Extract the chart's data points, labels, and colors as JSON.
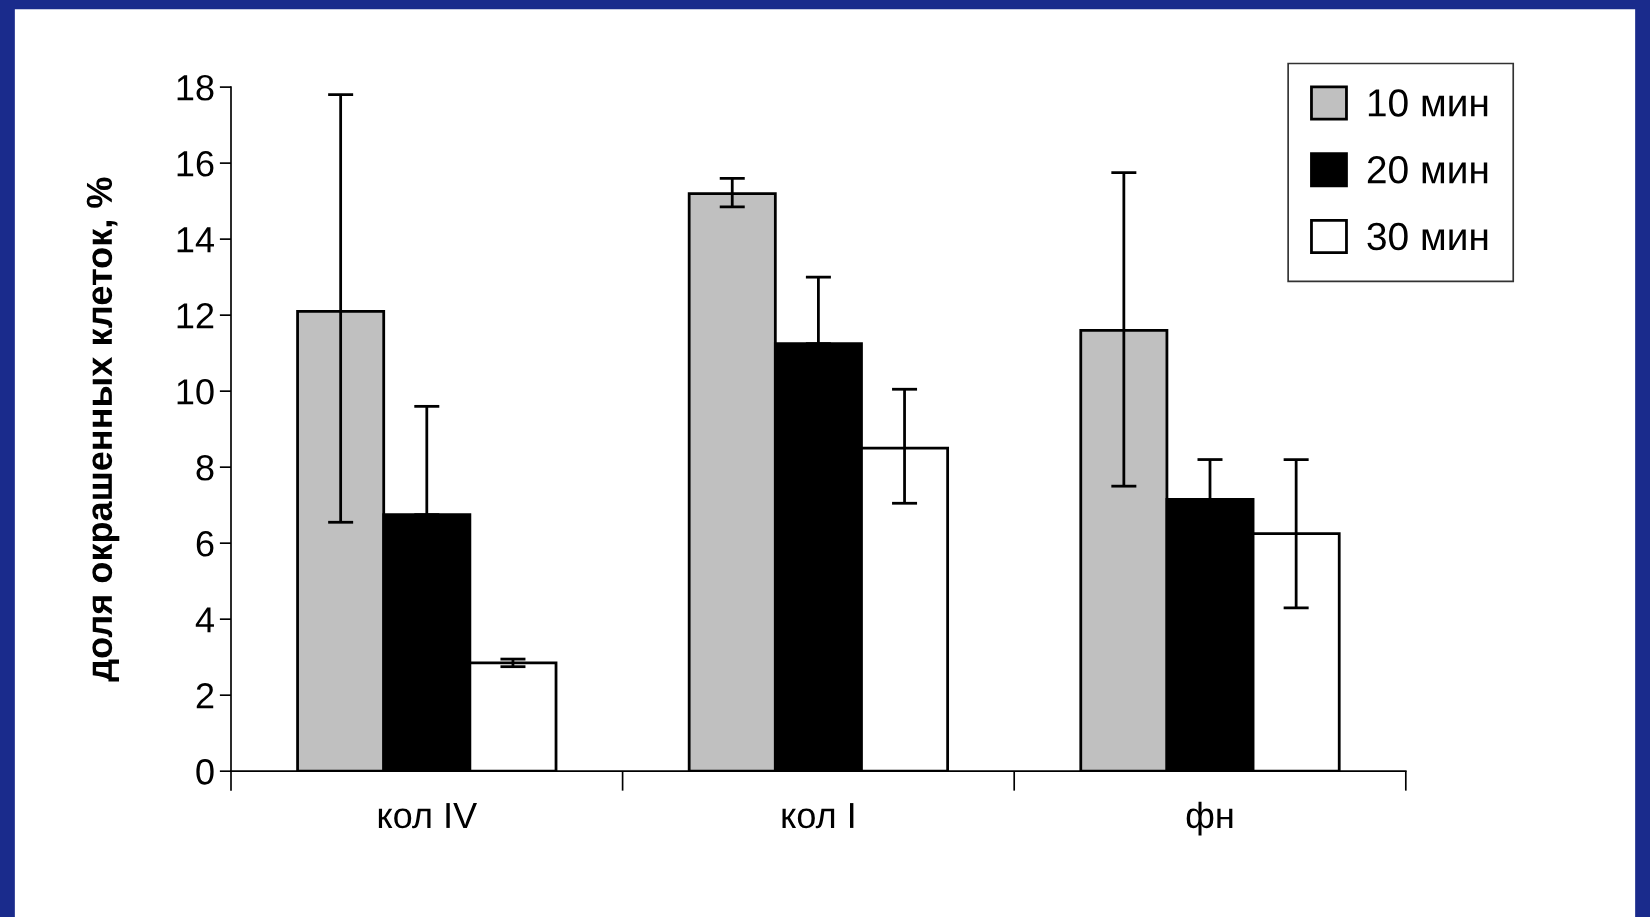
{
  "chart_data": {
    "type": "bar",
    "ylabel": "доля окрашенных клеток, %",
    "categories": [
      "кол IV",
      "кол I",
      "фн"
    ],
    "series": [
      {
        "name": "10 мин",
        "color": "#c0c0c0",
        "values": [
          12.1,
          15.2,
          11.6
        ],
        "errors": [
          [
            6.55,
            17.8
          ],
          [
            14.85,
            15.6
          ],
          [
            7.5,
            15.75
          ]
        ]
      },
      {
        "name": "20 мин",
        "color": "#000000",
        "values": [
          6.75,
          11.25,
          7.15
        ],
        "errors": [
          [
            6.75,
            9.6
          ],
          [
            11.25,
            13.0
          ],
          [
            7.15,
            8.2
          ]
        ]
      },
      {
        "name": "30 мин",
        "color": "#ffffff",
        "values": [
          2.85,
          8.5,
          6.25
        ],
        "errors": [
          [
            2.75,
            2.95
          ],
          [
            7.05,
            10.05
          ],
          [
            4.3,
            8.2
          ]
        ]
      }
    ],
    "ylim": [
      0,
      18
    ],
    "yticks": [
      0,
      2,
      4,
      6,
      8,
      10,
      12,
      14,
      16,
      18
    ],
    "grid": false,
    "legend": "top right"
  }
}
